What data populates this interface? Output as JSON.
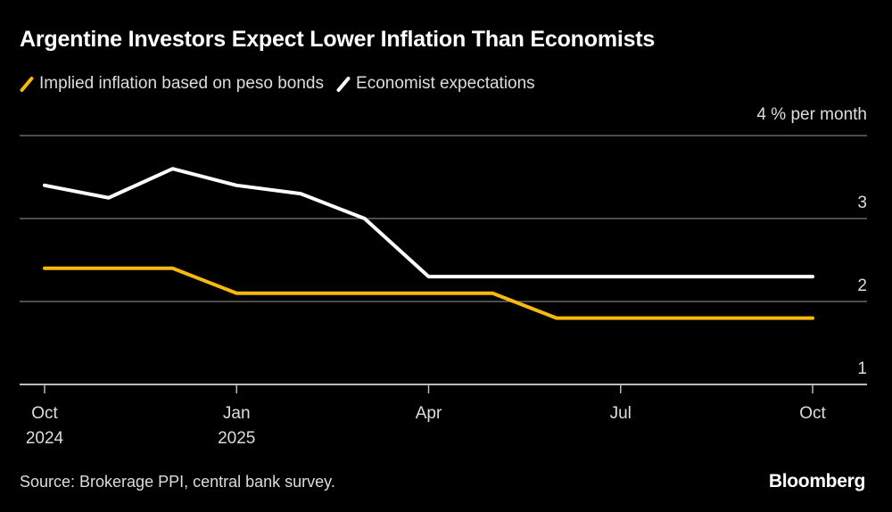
{
  "header": {
    "title": "Argentine Investors Expect Lower Inflation Than Economists",
    "unit_label": "4 % per month"
  },
  "legend": [
    {
      "label": "Implied inflation based on peso bonds",
      "color": "#F8B90F"
    },
    {
      "label": "Economist expectations",
      "color": "#FFFFFF"
    }
  ],
  "footer": {
    "source": "Source: Brokerage PPI, central bank survey.",
    "brand": "Bloomberg"
  },
  "chart_data": {
    "type": "line",
    "title": "Argentine Investors Expect Lower Inflation Than Economists",
    "xlabel": "",
    "ylabel": "% per month",
    "x": [
      "2024-10",
      "2024-11",
      "2024-12",
      "2025-01",
      "2025-02",
      "2025-03",
      "2025-04",
      "2025-05",
      "2025-06",
      "2025-07",
      "2025-08",
      "2025-09",
      "2025-10"
    ],
    "series": [
      {
        "name": "Implied inflation based on peso bonds",
        "color": "#F8B90F",
        "values": [
          2.4,
          2.4,
          2.4,
          2.1,
          2.1,
          2.1,
          2.1,
          2.1,
          1.8,
          1.8,
          1.8,
          1.8,
          1.8
        ]
      },
      {
        "name": "Economist expectations",
        "color": "#FFFFFF",
        "values": [
          3.4,
          3.25,
          3.6,
          3.4,
          3.3,
          3.0,
          2.3,
          2.3,
          2.3,
          2.3,
          2.3,
          2.3,
          2.3
        ]
      }
    ],
    "ylim": [
      1,
      4
    ],
    "yticks": [
      1,
      2,
      3,
      4
    ],
    "ytick_labels": [
      "1",
      "2",
      "3",
      "4 % per month"
    ],
    "xticks": [
      {
        "x": "2024-10",
        "label": "Oct",
        "sublabel": "2024"
      },
      {
        "x": "2025-01",
        "label": "Jan",
        "sublabel": "2025"
      },
      {
        "x": "2025-04",
        "label": "Apr",
        "sublabel": ""
      },
      {
        "x": "2025-07",
        "label": "Jul",
        "sublabel": ""
      },
      {
        "x": "2025-10",
        "label": "Oct",
        "sublabel": ""
      }
    ],
    "grid": true,
    "legend_position": "top-left"
  }
}
